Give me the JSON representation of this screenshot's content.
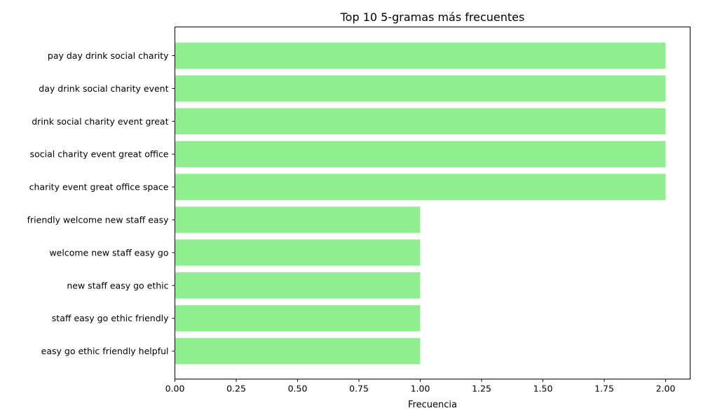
{
  "chart_data": {
    "type": "bar",
    "orientation": "horizontal",
    "title": "Top 10 5-gramas más frecuentes",
    "xlabel": "Frecuencia",
    "ylabel": "",
    "categories": [
      "pay day drink social charity",
      "day drink social charity event",
      "drink social charity event great",
      "social charity event great office",
      "charity event great office space",
      "friendly welcome new staff easy",
      "welcome new staff easy go",
      "new staff easy go ethic",
      "staff easy go ethic friendly",
      "easy go ethic friendly helpful"
    ],
    "values": [
      2,
      2,
      2,
      2,
      2,
      1,
      1,
      1,
      1,
      1
    ],
    "xlim": [
      0,
      2.1
    ],
    "xticks": [
      "0.00",
      "0.25",
      "0.50",
      "0.75",
      "1.00",
      "1.25",
      "1.50",
      "1.75",
      "2.00"
    ],
    "bar_color": "#90EE90",
    "grid": false,
    "legend": "none"
  }
}
